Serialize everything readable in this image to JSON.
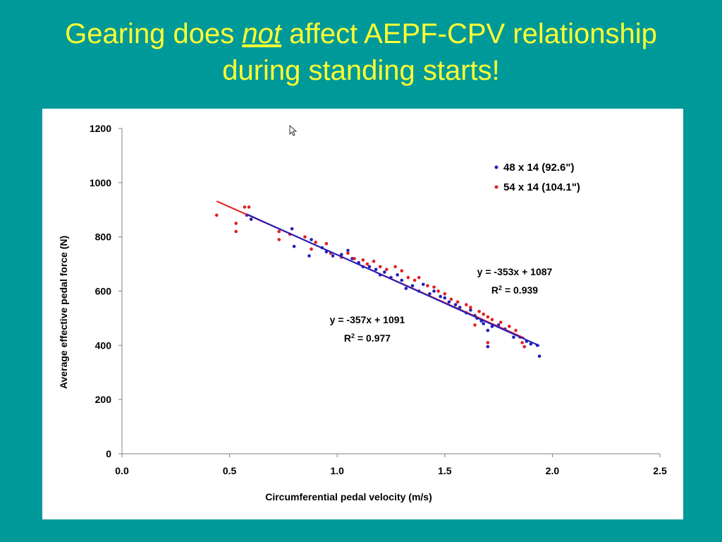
{
  "slide": {
    "title_part1": "Gearing does ",
    "title_emphasis": "not",
    "title_part2": " affect AEPF-CPV relationship",
    "title_line2": "during standing starts!"
  },
  "colors": {
    "background": "#009999",
    "title": "#ffff33",
    "series_blue": "#1f1fbf",
    "series_red": "#e02020"
  },
  "chart_data": {
    "type": "scatter",
    "xlabel": "Circumferential pedal velocity (m/s)",
    "ylabel": "Average effective pedal force (N)",
    "xlim": [
      0.0,
      2.5
    ],
    "ylim": [
      0,
      1200
    ],
    "x_ticks": [
      "0.0",
      "0.5",
      "1.0",
      "1.5",
      "2.0",
      "2.5"
    ],
    "y_ticks": [
      "0",
      "200",
      "400",
      "600",
      "800",
      "1000",
      "1200"
    ],
    "grid": false,
    "legend_position": "top-right",
    "series": [
      {
        "name": "48 x 14 (92.6\")",
        "color": "#1f1fbf",
        "trendline": {
          "slope": -357,
          "intercept": 1091,
          "x_range": [
            0.58,
            1.94
          ]
        },
        "equation": "y = -357x + 1091",
        "r2_label": "R",
        "r2_value": " = 0.977",
        "points": [
          [
            0.58,
            880
          ],
          [
            0.6,
            865
          ],
          [
            0.79,
            830
          ],
          [
            0.8,
            765
          ],
          [
            0.87,
            730
          ],
          [
            0.88,
            790
          ],
          [
            0.93,
            760
          ],
          [
            0.95,
            745
          ],
          [
            0.98,
            730
          ],
          [
            1.02,
            735
          ],
          [
            1.05,
            750
          ],
          [
            1.07,
            720
          ],
          [
            1.1,
            705
          ],
          [
            1.12,
            690
          ],
          [
            1.15,
            690
          ],
          [
            1.18,
            680
          ],
          [
            1.2,
            660
          ],
          [
            1.22,
            670
          ],
          [
            1.25,
            650
          ],
          [
            1.28,
            660
          ],
          [
            1.3,
            640
          ],
          [
            1.32,
            610
          ],
          [
            1.35,
            620
          ],
          [
            1.38,
            600
          ],
          [
            1.4,
            625
          ],
          [
            1.43,
            590
          ],
          [
            1.45,
            600
          ],
          [
            1.48,
            580
          ],
          [
            1.5,
            575
          ],
          [
            1.52,
            560
          ],
          [
            1.55,
            550
          ],
          [
            1.57,
            540
          ],
          [
            1.6,
            520
          ],
          [
            1.62,
            530
          ],
          [
            1.64,
            510
          ],
          [
            1.65,
            500
          ],
          [
            1.67,
            490
          ],
          [
            1.68,
            480
          ],
          [
            1.7,
            455
          ],
          [
            1.7,
            395
          ],
          [
            1.72,
            470
          ],
          [
            1.75,
            475
          ],
          [
            1.78,
            460
          ],
          [
            1.82,
            430
          ],
          [
            1.85,
            430
          ],
          [
            1.88,
            415
          ],
          [
            1.9,
            405
          ],
          [
            1.93,
            400
          ],
          [
            1.94,
            360
          ]
        ]
      },
      {
        "name": "54 x 14 (104.1\")",
        "color": "#e02020",
        "trendline": {
          "slope": -353,
          "intercept": 1087,
          "x_range": [
            0.44,
            1.87
          ]
        },
        "equation": "y = -353x + 1087",
        "r2_label": "R",
        "r2_value": " = 0.939",
        "points": [
          [
            0.44,
            880
          ],
          [
            0.53,
            850
          ],
          [
            0.53,
            820
          ],
          [
            0.57,
            910
          ],
          [
            0.59,
            910
          ],
          [
            0.73,
            820
          ],
          [
            0.73,
            790
          ],
          [
            0.78,
            810
          ],
          [
            0.85,
            800
          ],
          [
            0.88,
            755
          ],
          [
            0.9,
            780
          ],
          [
            0.95,
            775
          ],
          [
            0.97,
            740
          ],
          [
            1.02,
            725
          ],
          [
            1.05,
            740
          ],
          [
            1.08,
            720
          ],
          [
            1.12,
            715
          ],
          [
            1.14,
            700
          ],
          [
            1.17,
            710
          ],
          [
            1.2,
            690
          ],
          [
            1.23,
            680
          ],
          [
            1.27,
            690
          ],
          [
            1.3,
            675
          ],
          [
            1.33,
            650
          ],
          [
            1.36,
            640
          ],
          [
            1.38,
            650
          ],
          [
            1.42,
            620
          ],
          [
            1.45,
            615
          ],
          [
            1.47,
            600
          ],
          [
            1.5,
            590
          ],
          [
            1.53,
            570
          ],
          [
            1.56,
            560
          ],
          [
            1.6,
            550
          ],
          [
            1.62,
            540
          ],
          [
            1.64,
            475
          ],
          [
            1.66,
            525
          ],
          [
            1.68,
            515
          ],
          [
            1.7,
            505
          ],
          [
            1.7,
            410
          ],
          [
            1.72,
            495
          ],
          [
            1.76,
            485
          ],
          [
            1.8,
            470
          ],
          [
            1.83,
            455
          ],
          [
            1.85,
            430
          ],
          [
            1.86,
            410
          ],
          [
            1.87,
            395
          ]
        ]
      }
    ]
  }
}
